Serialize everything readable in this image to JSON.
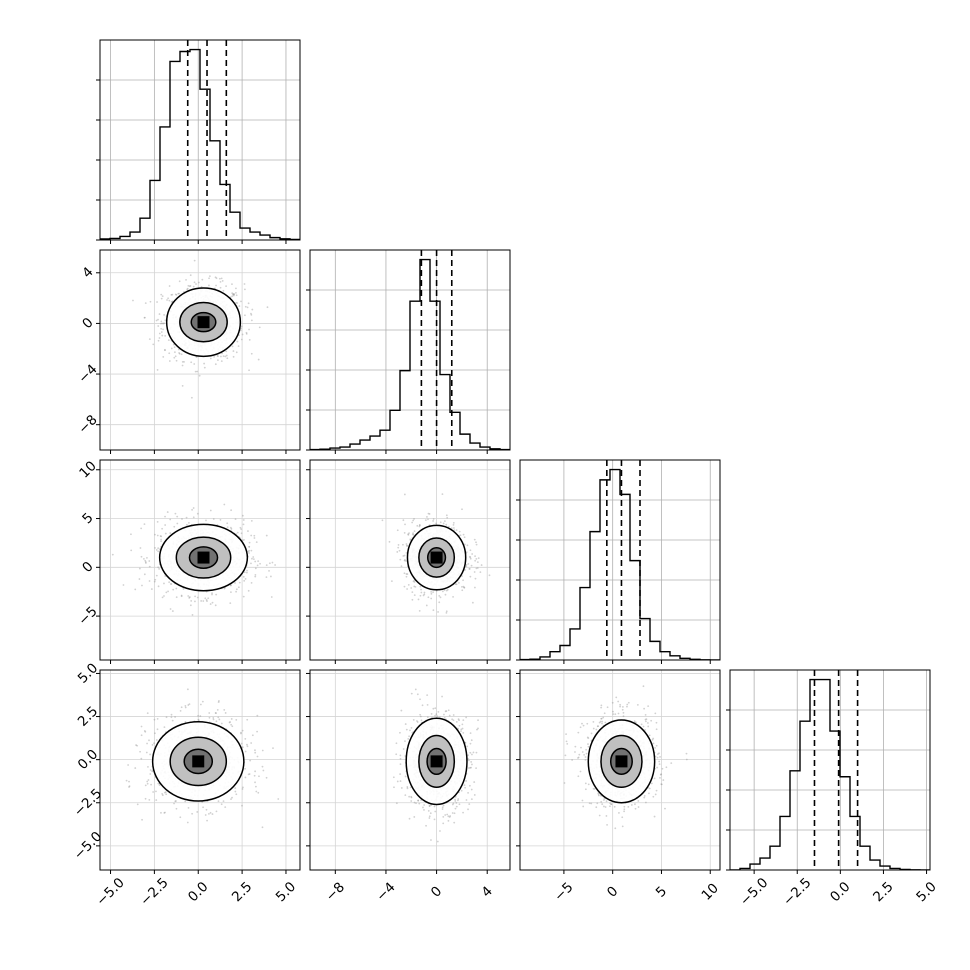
{
  "chart_data": {
    "type": "corner",
    "n_params": 4,
    "grid": true,
    "hist_color": "#000000",
    "scatter_color": "#9a9a9a",
    "quantile_style": "dashed",
    "params": [
      {
        "range": [
          -5.6,
          5.8
        ],
        "ticks": [
          -5.0,
          -2.5,
          0.0,
          2.5,
          5.0
        ],
        "tick_labels": [
          "−5.0",
          "−2.5",
          "0.0",
          "2.5",
          "5.0"
        ],
        "quantiles": [
          -0.6,
          0.5,
          1.6
        ],
        "hist_edges_start": -5.6,
        "hist_bin_width": 0.57,
        "hist_counts": [
          0.005,
          0.008,
          0.018,
          0.04,
          0.11,
          0.3,
          0.57,
          0.9,
          0.95,
          0.96,
          0.76,
          0.5,
          0.28,
          0.14,
          0.06,
          0.04,
          0.025,
          0.012,
          0.006,
          0.003
        ]
      },
      {
        "range": [
          -10.0,
          5.8
        ],
        "ticks": [
          -8,
          -4,
          0,
          4
        ],
        "tick_labels": [
          "−8",
          "−4",
          "0",
          "4"
        ],
        "quantiles": [
          -1.2,
          0.0,
          1.2
        ],
        "hist_edges_start": -10.0,
        "hist_bin_width": 0.79,
        "hist_counts": [
          0.002,
          0.004,
          0.01,
          0.015,
          0.03,
          0.05,
          0.07,
          0.1,
          0.2,
          0.4,
          0.75,
          0.96,
          0.75,
          0.38,
          0.19,
          0.08,
          0.035,
          0.015,
          0.006,
          0.002
        ]
      },
      {
        "range": [
          -9.5,
          11.0
        ],
        "ticks": [
          -5,
          0,
          5,
          10
        ],
        "tick_labels": [
          "−5",
          "0",
          "5",
          "10"
        ],
        "quantiles": [
          -0.6,
          0.9,
          2.8
        ],
        "hist_edges_start": -9.5,
        "hist_bin_width": 1.025,
        "hist_counts": [
          0.002,
          0.004,
          0.015,
          0.04,
          0.07,
          0.15,
          0.35,
          0.62,
          0.87,
          0.92,
          0.8,
          0.48,
          0.2,
          0.09,
          0.04,
          0.02,
          0.008,
          0.003,
          0.001,
          0.0
        ]
      },
      {
        "range": [
          -6.4,
          5.2
        ],
        "ticks": [
          -5.0,
          -2.5,
          0.0,
          2.5,
          5.0
        ],
        "tick_labels": [
          "−5.0",
          "−2.5",
          "0.0",
          "2.5",
          "5.0"
        ],
        "quantiles": [
          -1.5,
          -0.1,
          1.0
        ],
        "hist_edges_start": -6.4,
        "hist_bin_width": 0.58,
        "hist_counts": [
          0.0,
          0.008,
          0.03,
          0.06,
          0.12,
          0.27,
          0.5,
          0.75,
          0.96,
          0.96,
          0.7,
          0.47,
          0.27,
          0.12,
          0.05,
          0.02,
          0.008,
          0.003,
          0.001,
          0.0
        ]
      }
    ],
    "pairs": [
      {
        "row": 1,
        "col": 0,
        "center": [
          0.3,
          0.1
        ],
        "contours": [
          {
            "rx": 2.1,
            "ry": 2.7
          },
          {
            "rx": 1.35,
            "ry": 1.55
          },
          {
            "rx": 0.7,
            "ry": 0.75
          }
        ]
      },
      {
        "row": 2,
        "col": 0,
        "center": [
          0.3,
          1.0
        ],
        "contours": [
          {
            "rx": 2.5,
            "ry": 3.4
          },
          {
            "rx": 1.55,
            "ry": 2.1
          },
          {
            "rx": 0.8,
            "ry": 1.1
          }
        ]
      },
      {
        "row": 2,
        "col": 1,
        "center": [
          0.0,
          1.0
        ],
        "contours": [
          {
            "rx": 2.3,
            "ry": 3.3
          },
          {
            "rx": 1.4,
            "ry": 2.0
          },
          {
            "rx": 0.7,
            "ry": 1.0
          }
        ]
      },
      {
        "row": 3,
        "col": 0,
        "center": [
          0.0,
          -0.1
        ],
        "contours": [
          {
            "rx": 2.6,
            "ry": 2.3
          },
          {
            "rx": 1.6,
            "ry": 1.4
          },
          {
            "rx": 0.8,
            "ry": 0.7
          }
        ]
      },
      {
        "row": 3,
        "col": 1,
        "center": [
          0.0,
          -0.1
        ],
        "contours": [
          {
            "rx": 2.4,
            "ry": 2.5
          },
          {
            "rx": 1.4,
            "ry": 1.5
          },
          {
            "rx": 0.75,
            "ry": 0.75
          }
        ]
      },
      {
        "row": 3,
        "col": 2,
        "center": [
          0.9,
          -0.1
        ],
        "contours": [
          {
            "rx": 3.4,
            "ry": 2.4
          },
          {
            "rx": 2.1,
            "ry": 1.5
          },
          {
            "rx": 1.1,
            "ry": 0.75
          }
        ]
      }
    ]
  }
}
